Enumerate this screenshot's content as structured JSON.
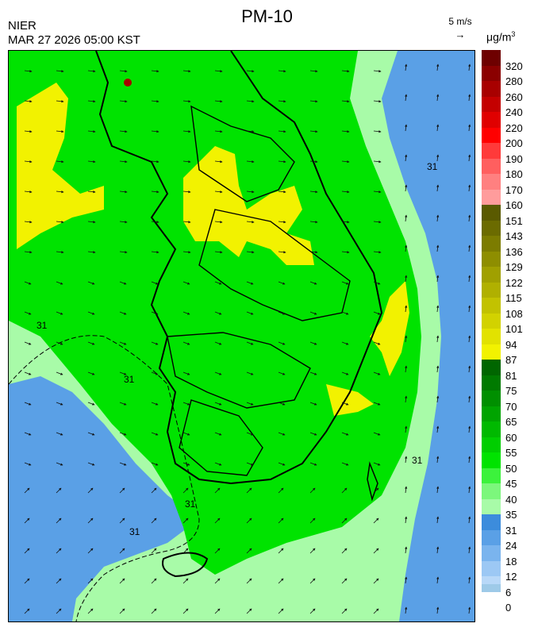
{
  "header": {
    "title": "PM-10",
    "agency": "NIER",
    "timestamp": "MAR 27 2026 05:00 KST",
    "wind_reference": "5 m/s",
    "unit": "μg/m",
    "unit_superscript": "3"
  },
  "map": {
    "contour_label": "31",
    "zones": [
      {
        "name": "open-sea-west",
        "level": 24
      },
      {
        "name": "open-sea-east",
        "level": 24
      },
      {
        "name": "coastal-sea",
        "level": 35
      },
      {
        "name": "inland",
        "level": 50
      },
      {
        "name": "hotspot-capital",
        "level": 87
      },
      {
        "name": "hotspot-central",
        "level": 87
      },
      {
        "name": "hotspot-east-coast",
        "level": 87
      },
      {
        "name": "hotspot-southeast",
        "level": 87
      },
      {
        "name": "hotspot-north-peak",
        "level": 260
      }
    ]
  },
  "legend": {
    "items": [
      {
        "label": "320",
        "color": "#6e0000"
      },
      {
        "label": "280",
        "color": "#8b0000"
      },
      {
        "label": "260",
        "color": "#a80000"
      },
      {
        "label": "240",
        "color": "#c40000"
      },
      {
        "label": "220",
        "color": "#e00000"
      },
      {
        "label": "200",
        "color": "#ff0000"
      },
      {
        "label": "190",
        "color": "#ff3a3a"
      },
      {
        "label": "180",
        "color": "#ff5f5f"
      },
      {
        "label": "170",
        "color": "#ff8080"
      },
      {
        "label": "160",
        "color": "#ff9c9c"
      },
      {
        "label": "151",
        "color": "#5a5a00"
      },
      {
        "label": "143",
        "color": "#6b6b00"
      },
      {
        "label": "136",
        "color": "#7c7c00"
      },
      {
        "label": "129",
        "color": "#8e8e00"
      },
      {
        "label": "122",
        "color": "#a0a000"
      },
      {
        "label": "115",
        "color": "#b0b000"
      },
      {
        "label": "108",
        "color": "#c2c200"
      },
      {
        "label": "101",
        "color": "#d2d200"
      },
      {
        "label": "94",
        "color": "#e2e200"
      },
      {
        "label": "87",
        "color": "#f2f200"
      },
      {
        "label": "81",
        "color": "#006600"
      },
      {
        "label": "75",
        "color": "#007a00"
      },
      {
        "label": "70",
        "color": "#008f00"
      },
      {
        "label": "65",
        "color": "#00a400"
      },
      {
        "label": "60",
        "color": "#00b900"
      },
      {
        "label": "55",
        "color": "#00ce00"
      },
      {
        "label": "50",
        "color": "#00e300"
      },
      {
        "label": "45",
        "color": "#3cf23c"
      },
      {
        "label": "40",
        "color": "#7cf77c"
      },
      {
        "label": "35",
        "color": "#a8fba8"
      },
      {
        "label": "31",
        "color": "#3c8cdc"
      },
      {
        "label": "24",
        "color": "#5aa0e6"
      },
      {
        "label": "18",
        "color": "#7ab4ee"
      },
      {
        "label": "12",
        "color": "#9cc8f4"
      },
      {
        "label": "6",
        "color": "#b8d8f8"
      },
      {
        "label": "0",
        "color": ""
      }
    ]
  }
}
